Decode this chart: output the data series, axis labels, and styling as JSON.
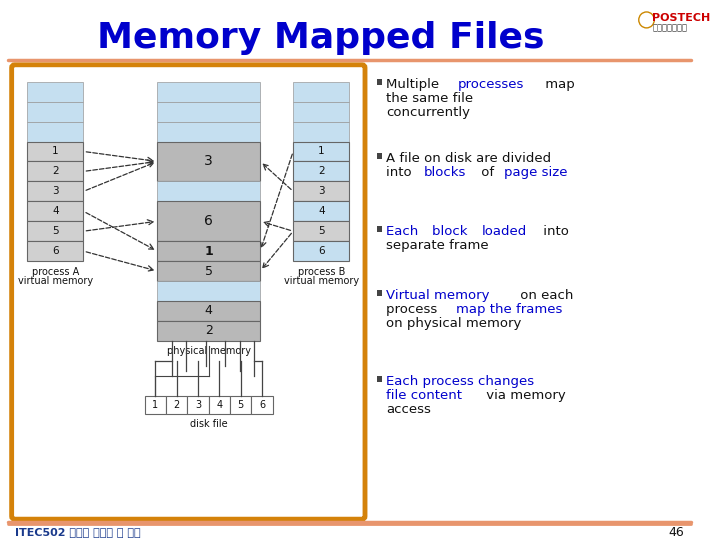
{
  "title": "Memory Mapped Files",
  "title_color": "#0000cc",
  "title_fontsize": 26,
  "bg_color": "#ffffff",
  "orange_line_color": "#e8956d",
  "diagram_border_color": "#d4820a",
  "light_blue": "#c5dff0",
  "gray_block": "#b8b8b8",
  "light_gray": "#d0d0d0",
  "white": "#ffffff",
  "footer_text": "ITEC502 컴퓨터 시스템 및 실습",
  "footer_page": "46",
  "bullet_square_color": "#444444",
  "bullet_text_color": "#111111",
  "highlight_color": "#0000cc",
  "bullet_fontsize": 9.5,
  "bullets": [
    {
      "lines": [
        {
          "parts": [
            {
              "text": "Multiple ",
              "color": "#111111"
            },
            {
              "text": "processes",
              "color": "#0000cc"
            },
            {
              "text": " map",
              "color": "#111111"
            }
          ]
        },
        {
          "parts": [
            {
              "text": "the same file",
              "color": "#111111"
            }
          ]
        },
        {
          "parts": [
            {
              "text": "concurrently",
              "color": "#111111"
            }
          ]
        }
      ]
    },
    {
      "lines": [
        {
          "parts": [
            {
              "text": "A file on disk are divided",
              "color": "#111111"
            }
          ]
        },
        {
          "parts": [
            {
              "text": "into ",
              "color": "#111111"
            },
            {
              "text": "blocks",
              "color": "#0000cc"
            },
            {
              "text": " of ",
              "color": "#111111"
            },
            {
              "text": "page size",
              "color": "#0000cc"
            }
          ]
        }
      ]
    },
    {
      "lines": [
        {
          "parts": [
            {
              "text": "Each ",
              "color": "#0000cc"
            },
            {
              "text": "block ",
              "color": "#0000cc"
            },
            {
              "text": "loaded",
              "color": "#0000cc"
            },
            {
              "text": " into",
              "color": "#111111"
            }
          ]
        },
        {
          "parts": [
            {
              "text": "separate frame",
              "color": "#111111"
            }
          ]
        }
      ]
    },
    {
      "lines": [
        {
          "parts": [
            {
              "text": "Virtual memory",
              "color": "#0000cc"
            },
            {
              "text": " on each",
              "color": "#111111"
            }
          ]
        },
        {
          "parts": [
            {
              "text": "process ",
              "color": "#111111"
            },
            {
              "text": "map the frames",
              "color": "#0000cc"
            }
          ]
        },
        {
          "parts": [
            {
              "text": "on physical memory",
              "color": "#111111"
            }
          ]
        }
      ]
    },
    {
      "lines": [
        {
          "parts": [
            {
              "text": "Each process changes",
              "color": "#0000cc"
            }
          ]
        },
        {
          "parts": [
            {
              "text": "file content",
              "color": "#0000cc"
            },
            {
              "text": " via memory",
              "color": "#111111"
            }
          ]
        },
        {
          "parts": [
            {
              "text": "access",
              "color": "#111111"
            }
          ]
        }
      ]
    }
  ]
}
